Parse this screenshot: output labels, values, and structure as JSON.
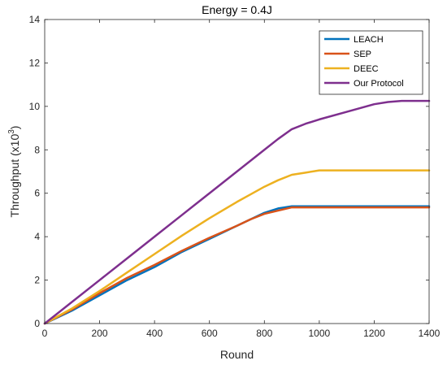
{
  "chart_data": {
    "type": "line",
    "title": "Energy = 0.4J",
    "xlabel": "Round",
    "ylabel": "Throughput (x10",
    "ylabel_exponent": "3",
    "ylabel_suffix": ")",
    "xlim": [
      0,
      1400
    ],
    "ylim": [
      0,
      14
    ],
    "xticks": [
      0,
      200,
      400,
      600,
      800,
      1000,
      1200,
      1400
    ],
    "yticks": [
      0,
      2,
      4,
      6,
      8,
      10,
      12,
      14
    ],
    "grid": false,
    "legend_position": "top-right",
    "series": [
      {
        "name": "LEACH",
        "color": "#0072BD",
        "x": [
          0,
          100,
          200,
          300,
          400,
          500,
          600,
          700,
          750,
          800,
          850,
          900,
          950,
          1000,
          1200,
          1400
        ],
        "y": [
          0,
          0.6,
          1.3,
          2.0,
          2.6,
          3.3,
          3.9,
          4.5,
          4.8,
          5.1,
          5.3,
          5.4,
          5.4,
          5.4,
          5.4,
          5.4
        ]
      },
      {
        "name": "SEP",
        "color": "#D95319",
        "x": [
          0,
          100,
          200,
          300,
          400,
          500,
          600,
          700,
          750,
          800,
          850,
          900,
          950,
          1000,
          1200,
          1400
        ],
        "y": [
          0,
          0.65,
          1.4,
          2.1,
          2.7,
          3.35,
          3.95,
          4.5,
          4.8,
          5.05,
          5.2,
          5.35,
          5.35,
          5.35,
          5.35,
          5.35
        ]
      },
      {
        "name": "DEEC",
        "color": "#EDB120",
        "x": [
          0,
          100,
          200,
          300,
          400,
          500,
          600,
          700,
          750,
          800,
          850,
          900,
          950,
          1000,
          1200,
          1400
        ],
        "y": [
          0,
          0.7,
          1.5,
          2.35,
          3.2,
          4.05,
          4.85,
          5.6,
          5.95,
          6.3,
          6.6,
          6.85,
          6.95,
          7.05,
          7.05,
          7.05
        ]
      },
      {
        "name": "Our Protocol",
        "color": "#7E2F8E",
        "x": [
          0,
          100,
          200,
          300,
          400,
          500,
          600,
          700,
          800,
          850,
          900,
          950,
          1000,
          1100,
          1200,
          1250,
          1300,
          1400
        ],
        "y": [
          0,
          1.0,
          2.0,
          3.0,
          4.0,
          5.0,
          6.0,
          7.0,
          8.0,
          8.5,
          8.95,
          9.2,
          9.4,
          9.75,
          10.1,
          10.2,
          10.25,
          10.25
        ]
      }
    ]
  }
}
